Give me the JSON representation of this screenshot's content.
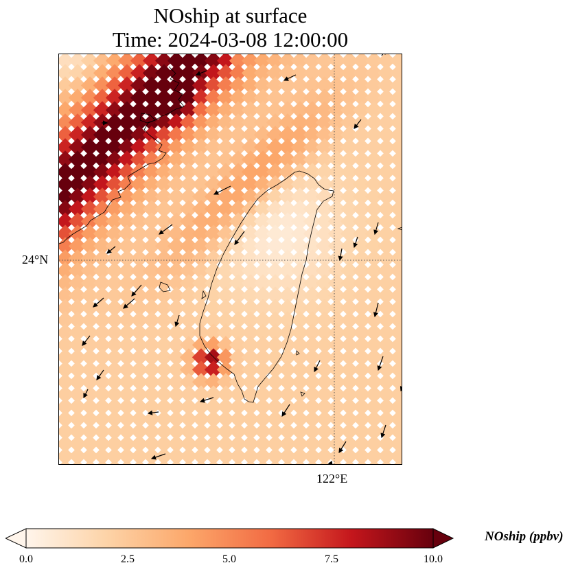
{
  "title": {
    "line1": "NOship at surface",
    "line2": "Time: 2024-03-08 12:00:00"
  },
  "map": {
    "lat_tick_label": "24°N",
    "lon_tick_label": "122°E",
    "colormap": [
      "#fff5eb",
      "#fdd3a7",
      "#fca76a",
      "#f26b43",
      "#c4161c",
      "#67000d"
    ],
    "coastline_color": "#000000",
    "gridline_style": "dotted"
  },
  "colorbar": {
    "label": "NOship (ppbv)",
    "min": 0.0,
    "max": 10.0,
    "extend": "both",
    "ticks": [
      "0.0",
      "2.5",
      "5.0",
      "7.5",
      "10.0"
    ],
    "tick_values": [
      0.0,
      2.5,
      5.0,
      7.5,
      10.0
    ]
  }
}
